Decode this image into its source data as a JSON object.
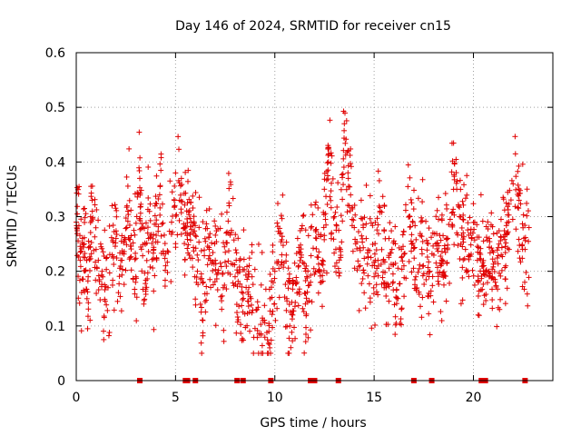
{
  "chart_data": {
    "type": "scatter",
    "title": "Day 146 of 2024, SRMTID for receiver cn15",
    "xlabel": "GPS time / hours",
    "ylabel": "SRMTID / TECUs",
    "xlim": [
      0,
      24
    ],
    "ylim": [
      0,
      0.6
    ],
    "xticks": [
      0,
      5,
      10,
      15,
      20
    ],
    "xtick_labels": [
      "0",
      "5",
      "10",
      "15",
      "20"
    ],
    "yticks": [
      0,
      0.1,
      0.2,
      0.3,
      0.4,
      0.5,
      0.6
    ],
    "ytick_labels": [
      "0",
      "0.1",
      "0.2",
      "0.3",
      "0.4",
      "0.5",
      "0.6"
    ],
    "grid": true,
    "marker": "+",
    "series_color": "#e00000",
    "series": [
      {
        "name": "SRMTID",
        "x": [
          0.0,
          0.2,
          0.4,
          0.6,
          0.8,
          1.0,
          1.3,
          1.6,
          2.0,
          2.3,
          2.6,
          3.0,
          3.2,
          3.4,
          3.6,
          3.9,
          4.2,
          4.5,
          4.8,
          5.0,
          5.2,
          5.5,
          5.8,
          6.1,
          6.4,
          6.7,
          7.0,
          7.4,
          7.7,
          8.0,
          8.4,
          8.8,
          9.1,
          9.4,
          9.7,
          10.0,
          10.3,
          10.6,
          10.9,
          11.2,
          11.5,
          11.8,
          12.1,
          12.4,
          12.7,
          13.0,
          13.3,
          13.5,
          13.7,
          14.0,
          14.3,
          14.6,
          15.0,
          15.3,
          15.6,
          15.9,
          16.2,
          16.5,
          16.8,
          17.1,
          17.4,
          17.8,
          18.1,
          18.4,
          18.7,
          19.0,
          19.3,
          19.6,
          19.9,
          20.2,
          20.5,
          20.8,
          21.1,
          21.4,
          21.7,
          22.0,
          22.3,
          22.6,
          22.8
        ],
        "y": [
          0.29,
          0.22,
          0.25,
          0.19,
          0.33,
          0.24,
          0.2,
          0.17,
          0.26,
          0.22,
          0.31,
          0.19,
          0.37,
          0.14,
          0.27,
          0.24,
          0.34,
          0.21,
          0.29,
          0.38,
          0.33,
          0.27,
          0.29,
          0.2,
          0.18,
          0.24,
          0.22,
          0.17,
          0.32,
          0.19,
          0.16,
          0.15,
          0.13,
          0.11,
          0.09,
          0.2,
          0.27,
          0.15,
          0.12,
          0.21,
          0.16,
          0.18,
          0.26,
          0.22,
          0.4,
          0.3,
          0.24,
          0.47,
          0.37,
          0.28,
          0.21,
          0.26,
          0.19,
          0.31,
          0.17,
          0.24,
          0.15,
          0.21,
          0.3,
          0.19,
          0.24,
          0.2,
          0.25,
          0.22,
          0.26,
          0.35,
          0.3,
          0.24,
          0.26,
          0.22,
          0.2,
          0.26,
          0.18,
          0.23,
          0.27,
          0.36,
          0.33,
          0.24,
          0.28
        ]
      }
    ],
    "zero_markers_x": [
      3.2,
      5.5,
      5.6,
      6.0,
      8.1,
      8.4,
      9.8,
      11.8,
      12.0,
      13.2,
      17.0,
      17.9,
      20.4,
      20.6,
      22.6
    ]
  }
}
